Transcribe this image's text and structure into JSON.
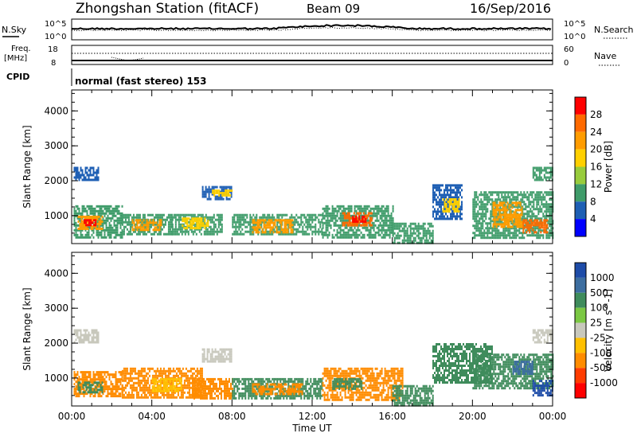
{
  "header": {
    "station": "Zhongshan Station (fitACF)",
    "beam": "Beam 09",
    "date": "16/Sep/2016",
    "cpid_label": "CPID",
    "cpid_value": "normal (fast stereo) 153",
    "nsky_label": "N.Sky",
    "nsky_ticks": [
      "10^5",
      "10^0"
    ],
    "nsearch_label": "N.Search",
    "nsearch_ticks": [
      "10^5",
      "10^0"
    ],
    "freq_label": "Freq.",
    "freq_unit": "[MHz]",
    "freq_ticks": [
      "18",
      "8"
    ],
    "nave_label": "Nave",
    "nave_ticks": [
      "60",
      "0"
    ]
  },
  "chart_data": [
    {
      "type": "heatmap",
      "panel": "power",
      "xlabel": "",
      "ylabel": "Slant Range [km]",
      "yticks": [
        "1000",
        "2000",
        "3000",
        "4000"
      ],
      "ylim": [
        200,
        4600
      ],
      "xlim_hours": [
        0,
        24
      ],
      "colorbar_label": "Power [dB]",
      "colorbar_ticks": [
        "28",
        "24",
        "20",
        "16",
        "12",
        "8",
        "4"
      ],
      "colorbar_colors": [
        "#ff0000",
        "#ff6a00",
        "#ff9c00",
        "#ffd000",
        "#98cc3c",
        "#3f9c6a",
        "#1e5fb4",
        "#0000ff"
      ],
      "regions": [
        {
          "t0": 0.1,
          "t1": 1.3,
          "r0": 2000,
          "r1": 2400,
          "color": "#1e5fb4"
        },
        {
          "t0": 0.1,
          "t1": 2.5,
          "r0": 400,
          "r1": 1300,
          "color": "#3f9c6a"
        },
        {
          "t0": 0.3,
          "t1": 1.5,
          "r0": 600,
          "r1": 1000,
          "color": "#ff9c00"
        },
        {
          "t0": 0.6,
          "t1": 1.2,
          "r0": 700,
          "r1": 900,
          "color": "#ff0000"
        },
        {
          "t0": 2.5,
          "t1": 5.0,
          "r0": 450,
          "r1": 1050,
          "color": "#3f9c6a"
        },
        {
          "t0": 3.0,
          "t1": 4.5,
          "r0": 600,
          "r1": 900,
          "color": "#ff9c00"
        },
        {
          "t0": 5.0,
          "t1": 7.5,
          "r0": 500,
          "r1": 1050,
          "color": "#3f9c6a"
        },
        {
          "t0": 5.5,
          "t1": 6.8,
          "r0": 650,
          "r1": 950,
          "color": "#ffd000"
        },
        {
          "t0": 6.5,
          "t1": 8.0,
          "r0": 1500,
          "r1": 1850,
          "color": "#1e5fb4"
        },
        {
          "t0": 7.0,
          "t1": 8.0,
          "r0": 1600,
          "r1": 1750,
          "color": "#ffd000"
        },
        {
          "t0": 8.0,
          "t1": 12.5,
          "r0": 450,
          "r1": 1050,
          "color": "#3f9c6a"
        },
        {
          "t0": 9.0,
          "t1": 11.0,
          "r0": 550,
          "r1": 900,
          "color": "#ff9c00"
        },
        {
          "t0": 12.5,
          "t1": 16.0,
          "r0": 400,
          "r1": 1300,
          "color": "#3f9c6a"
        },
        {
          "t0": 13.5,
          "t1": 15.0,
          "r0": 700,
          "r1": 1100,
          "color": "#ff6a00"
        },
        {
          "t0": 14.0,
          "t1": 14.7,
          "r0": 800,
          "r1": 1000,
          "color": "#ff0000"
        },
        {
          "t0": 16.0,
          "t1": 18.0,
          "r0": 250,
          "r1": 800,
          "color": "#3f9c6a"
        },
        {
          "t0": 18.0,
          "t1": 19.5,
          "r0": 900,
          "r1": 1900,
          "color": "#1e5fb4"
        },
        {
          "t0": 18.5,
          "t1": 19.3,
          "r0": 1100,
          "r1": 1500,
          "color": "#ffd000"
        },
        {
          "t0": 20.0,
          "t1": 24.0,
          "r0": 400,
          "r1": 1700,
          "color": "#3f9c6a"
        },
        {
          "t0": 21.0,
          "t1": 22.5,
          "r0": 700,
          "r1": 1400,
          "color": "#ff9c00"
        },
        {
          "t0": 22.5,
          "t1": 23.7,
          "r0": 500,
          "r1": 900,
          "color": "#ff6a00"
        },
        {
          "t0": 23.0,
          "t1": 24.0,
          "r0": 2000,
          "r1": 2400,
          "color": "#3f9c6a"
        }
      ]
    },
    {
      "type": "heatmap",
      "panel": "velocity",
      "xlabel": "Time UT",
      "ylabel": "Slant Range [km]",
      "yticks": [
        "1000",
        "2000",
        "3000",
        "4000"
      ],
      "xticks": [
        "00:00",
        "04:00",
        "08:00",
        "12:00",
        "16:00",
        "20:00",
        "00:00"
      ],
      "ylim": [
        200,
        4600
      ],
      "xlim_hours": [
        0,
        24
      ],
      "colorbar_label": "Velocity [m s^-1]",
      "colorbar_ticks": [
        "1000",
        "500",
        "100",
        "25",
        "-25",
        "-100",
        "-500",
        "-1000"
      ],
      "colorbar_colors": [
        "#1e4ca8",
        "#3d6ea0",
        "#3f8c5c",
        "#7bc843",
        "#c8c8bc",
        "#ffc000",
        "#ff8c00",
        "#ff3c00",
        "#ff0000"
      ],
      "regions": [
        {
          "t0": 0.1,
          "t1": 1.3,
          "r0": 2000,
          "r1": 2400,
          "color": "#c8c8bc"
        },
        {
          "t0": 0.1,
          "t1": 2.5,
          "r0": 450,
          "r1": 1200,
          "color": "#ff8c00"
        },
        {
          "t0": 0.3,
          "t1": 1.5,
          "r0": 600,
          "r1": 900,
          "color": "#3f8c5c"
        },
        {
          "t0": 2.5,
          "t1": 6.5,
          "r0": 450,
          "r1": 1300,
          "color": "#ff8c00"
        },
        {
          "t0": 4.0,
          "t1": 5.5,
          "r0": 600,
          "r1": 1000,
          "color": "#ffc000"
        },
        {
          "t0": 6.5,
          "t1": 8.0,
          "r0": 1500,
          "r1": 1850,
          "color": "#c8c8bc"
        },
        {
          "t0": 6.0,
          "t1": 8.0,
          "r0": 450,
          "r1": 1000,
          "color": "#ff8c00"
        },
        {
          "t0": 8.0,
          "t1": 12.5,
          "r0": 450,
          "r1": 1000,
          "color": "#3f8c5c"
        },
        {
          "t0": 9.0,
          "t1": 11.5,
          "r0": 550,
          "r1": 850,
          "color": "#ff8c00"
        },
        {
          "t0": 12.5,
          "t1": 16.5,
          "r0": 400,
          "r1": 1300,
          "color": "#ff8c00"
        },
        {
          "t0": 13.0,
          "t1": 14.5,
          "r0": 700,
          "r1": 1000,
          "color": "#3f8c5c"
        },
        {
          "t0": 16.0,
          "t1": 18.0,
          "r0": 250,
          "r1": 800,
          "color": "#3f8c5c"
        },
        {
          "t0": 18.0,
          "t1": 21.0,
          "r0": 900,
          "r1": 2000,
          "color": "#3f8c5c"
        },
        {
          "t0": 20.0,
          "t1": 24.0,
          "r0": 700,
          "r1": 1700,
          "color": "#3f8c5c"
        },
        {
          "t0": 22.0,
          "t1": 23.0,
          "r0": 1100,
          "r1": 1500,
          "color": "#3d6ea0"
        },
        {
          "t0": 23.0,
          "t1": 24.0,
          "r0": 500,
          "r1": 950,
          "color": "#1e4ca8"
        },
        {
          "t0": 23.0,
          "t1": 24.0,
          "r0": 2000,
          "r1": 2400,
          "color": "#c8c8bc"
        }
      ]
    }
  ]
}
